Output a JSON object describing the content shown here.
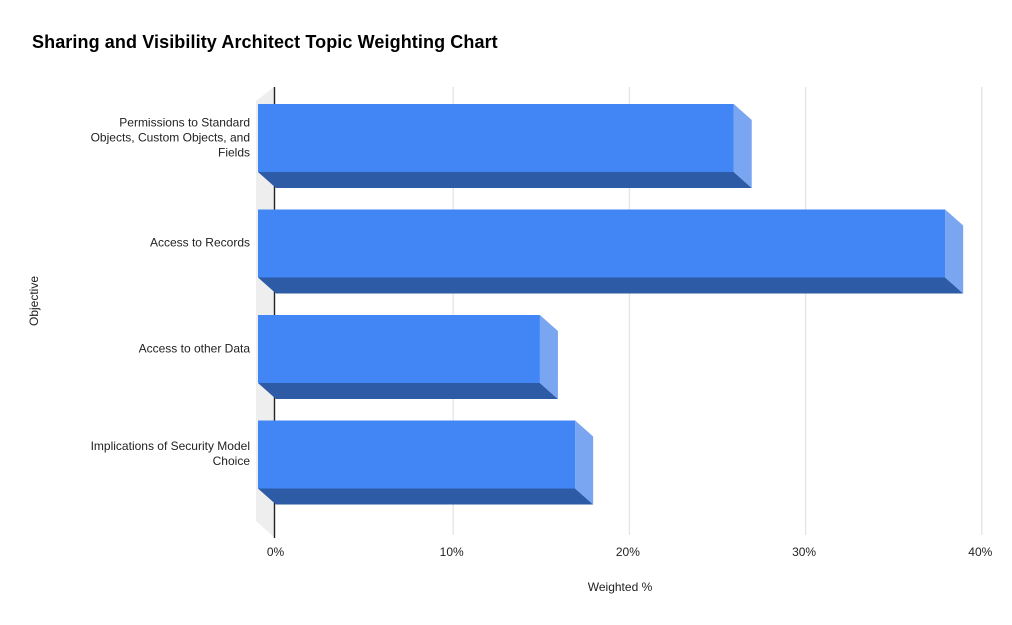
{
  "chart_data": {
    "type": "bar",
    "orientation": "horizontal",
    "style": "3d",
    "title": "Sharing and Visibility Architect Topic Weighting Chart",
    "categories": [
      "Permissions to Standard Objects, Custom Objects, and Fields",
      "Access to Records",
      "Access to other Data",
      "Implications of Security Model Choice"
    ],
    "values": [
      27,
      39,
      16,
      18
    ],
    "unit": "%",
    "xlabel": "Weighted %",
    "ylabel": "Objective",
    "x_ticks": [
      "0%",
      "10%",
      "20%",
      "30%",
      "40%"
    ],
    "x_tick_values": [
      0,
      10,
      20,
      30,
      40
    ],
    "xlim": [
      0,
      40
    ],
    "grid": true,
    "legend": "none",
    "colors": {
      "bar_front": "#4285f4",
      "bar_side": "#7aa5f1",
      "bar_bottom": "#2d5ba6",
      "wall": "#eeeeee",
      "gridline": "#e6e6e6",
      "axis_line": "#222222",
      "title_text": "#000000",
      "label_text": "#222222"
    }
  }
}
